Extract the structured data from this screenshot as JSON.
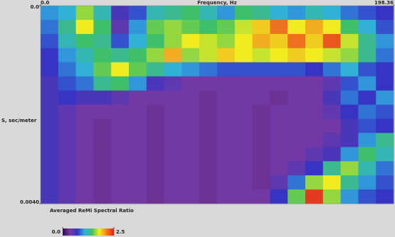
{
  "chart_data": {
    "type": "heatmap",
    "xlabel": "Frequency, Hz",
    "ylabel": "S, sec/meter",
    "xlim": [
      0,
      198.36
    ],
    "xticks": [
      {
        "value": 0,
        "label": "0.0"
      },
      198.36
    ],
    "ylim": [
      0,
      0.004
    ],
    "yticks": [
      {
        "value": 0,
        "label": "0.0"
      },
      {
        "value": 0.004,
        "label": "0.0040"
      }
    ],
    "colorbar_title": "Averaged ReMi Spectral Ratio",
    "clim": [
      0,
      2.5
    ],
    "cticks": [
      {
        "value": 0,
        "label": "0.0"
      },
      2.5
    ],
    "colorscale": [
      "#2a0a5a",
      "#7a3aa0",
      "#3434c4",
      "#30b0e0",
      "#40c060",
      "#f0f020",
      "#f08020",
      "#e02020"
    ],
    "z": [
      [
        1.0,
        1.1,
        1.6,
        1.2,
        0.6,
        0.8,
        1.2,
        1.3,
        1.4,
        1.2,
        1.0,
        1.4,
        1.3,
        1.1,
        1.0,
        1.2,
        1.1,
        0.9,
        0.8,
        0.7
      ],
      [
        0.9,
        1.3,
        1.8,
        1.4,
        0.5,
        1.0,
        1.5,
        1.6,
        1.5,
        1.4,
        1.5,
        1.7,
        1.9,
        2.2,
        1.8,
        2.0,
        1.8,
        1.4,
        1.1,
        0.8
      ],
      [
        0.8,
        1.2,
        1.4,
        1.3,
        0.8,
        1.1,
        1.4,
        1.6,
        1.8,
        1.7,
        1.6,
        1.8,
        2.0,
        1.9,
        2.2,
        1.9,
        2.3,
        1.7,
        1.3,
        1.0
      ],
      [
        0.7,
        1.0,
        1.2,
        1.4,
        1.3,
        1.4,
        1.6,
        2.0,
        1.6,
        1.7,
        1.9,
        1.8,
        1.7,
        1.8,
        1.9,
        1.8,
        1.7,
        1.6,
        1.3,
        0.9
      ],
      [
        0.7,
        0.9,
        1.1,
        1.5,
        1.8,
        1.5,
        1.3,
        1.1,
        1.0,
        0.9,
        0.8,
        0.8,
        0.8,
        0.8,
        0.8,
        0.7,
        0.9,
        1.1,
        0.8,
        0.7
      ],
      [
        0.6,
        0.8,
        0.9,
        1.3,
        1.4,
        1.0,
        0.6,
        0.5,
        0.4,
        0.4,
        0.4,
        0.4,
        0.4,
        0.4,
        0.4,
        0.4,
        0.5,
        0.8,
        1.0,
        0.7
      ],
      [
        0.6,
        0.7,
        0.6,
        0.6,
        0.5,
        0.4,
        0.4,
        0.4,
        0.4,
        0.3,
        0.4,
        0.4,
        0.4,
        0.3,
        0.4,
        0.4,
        0.6,
        0.9,
        0.7,
        1.0
      ],
      [
        0.6,
        0.5,
        0.4,
        0.4,
        0.4,
        0.4,
        0.3,
        0.4,
        0.4,
        0.3,
        0.4,
        0.4,
        0.3,
        0.4,
        0.4,
        0.4,
        0.5,
        0.7,
        0.9,
        0.8
      ],
      [
        0.6,
        0.5,
        0.4,
        0.3,
        0.4,
        0.4,
        0.3,
        0.4,
        0.4,
        0.3,
        0.4,
        0.4,
        0.3,
        0.4,
        0.4,
        0.4,
        0.4,
        0.6,
        0.8,
        0.7
      ],
      [
        0.6,
        0.5,
        0.4,
        0.3,
        0.4,
        0.4,
        0.3,
        0.4,
        0.4,
        0.3,
        0.4,
        0.4,
        0.3,
        0.4,
        0.4,
        0.4,
        0.5,
        0.6,
        1.0,
        1.3
      ],
      [
        0.6,
        0.5,
        0.4,
        0.3,
        0.4,
        0.4,
        0.3,
        0.4,
        0.4,
        0.3,
        0.4,
        0.4,
        0.3,
        0.4,
        0.4,
        0.5,
        0.6,
        1.0,
        1.4,
        1.2
      ],
      [
        0.6,
        0.5,
        0.4,
        0.3,
        0.4,
        0.4,
        0.3,
        0.4,
        0.4,
        0.3,
        0.4,
        0.4,
        0.3,
        0.4,
        0.5,
        0.7,
        1.3,
        1.6,
        1.2,
        0.9
      ],
      [
        0.6,
        0.5,
        0.4,
        0.3,
        0.4,
        0.4,
        0.3,
        0.4,
        0.4,
        0.3,
        0.4,
        0.4,
        0.3,
        0.5,
        0.9,
        1.6,
        1.8,
        1.3,
        1.0,
        0.8
      ],
      [
        0.6,
        0.5,
        0.4,
        0.3,
        0.4,
        0.4,
        0.3,
        0.4,
        0.4,
        0.3,
        0.4,
        0.4,
        0.4,
        0.7,
        1.5,
        2.4,
        1.6,
        1.0,
        0.8,
        0.7
      ]
    ]
  }
}
